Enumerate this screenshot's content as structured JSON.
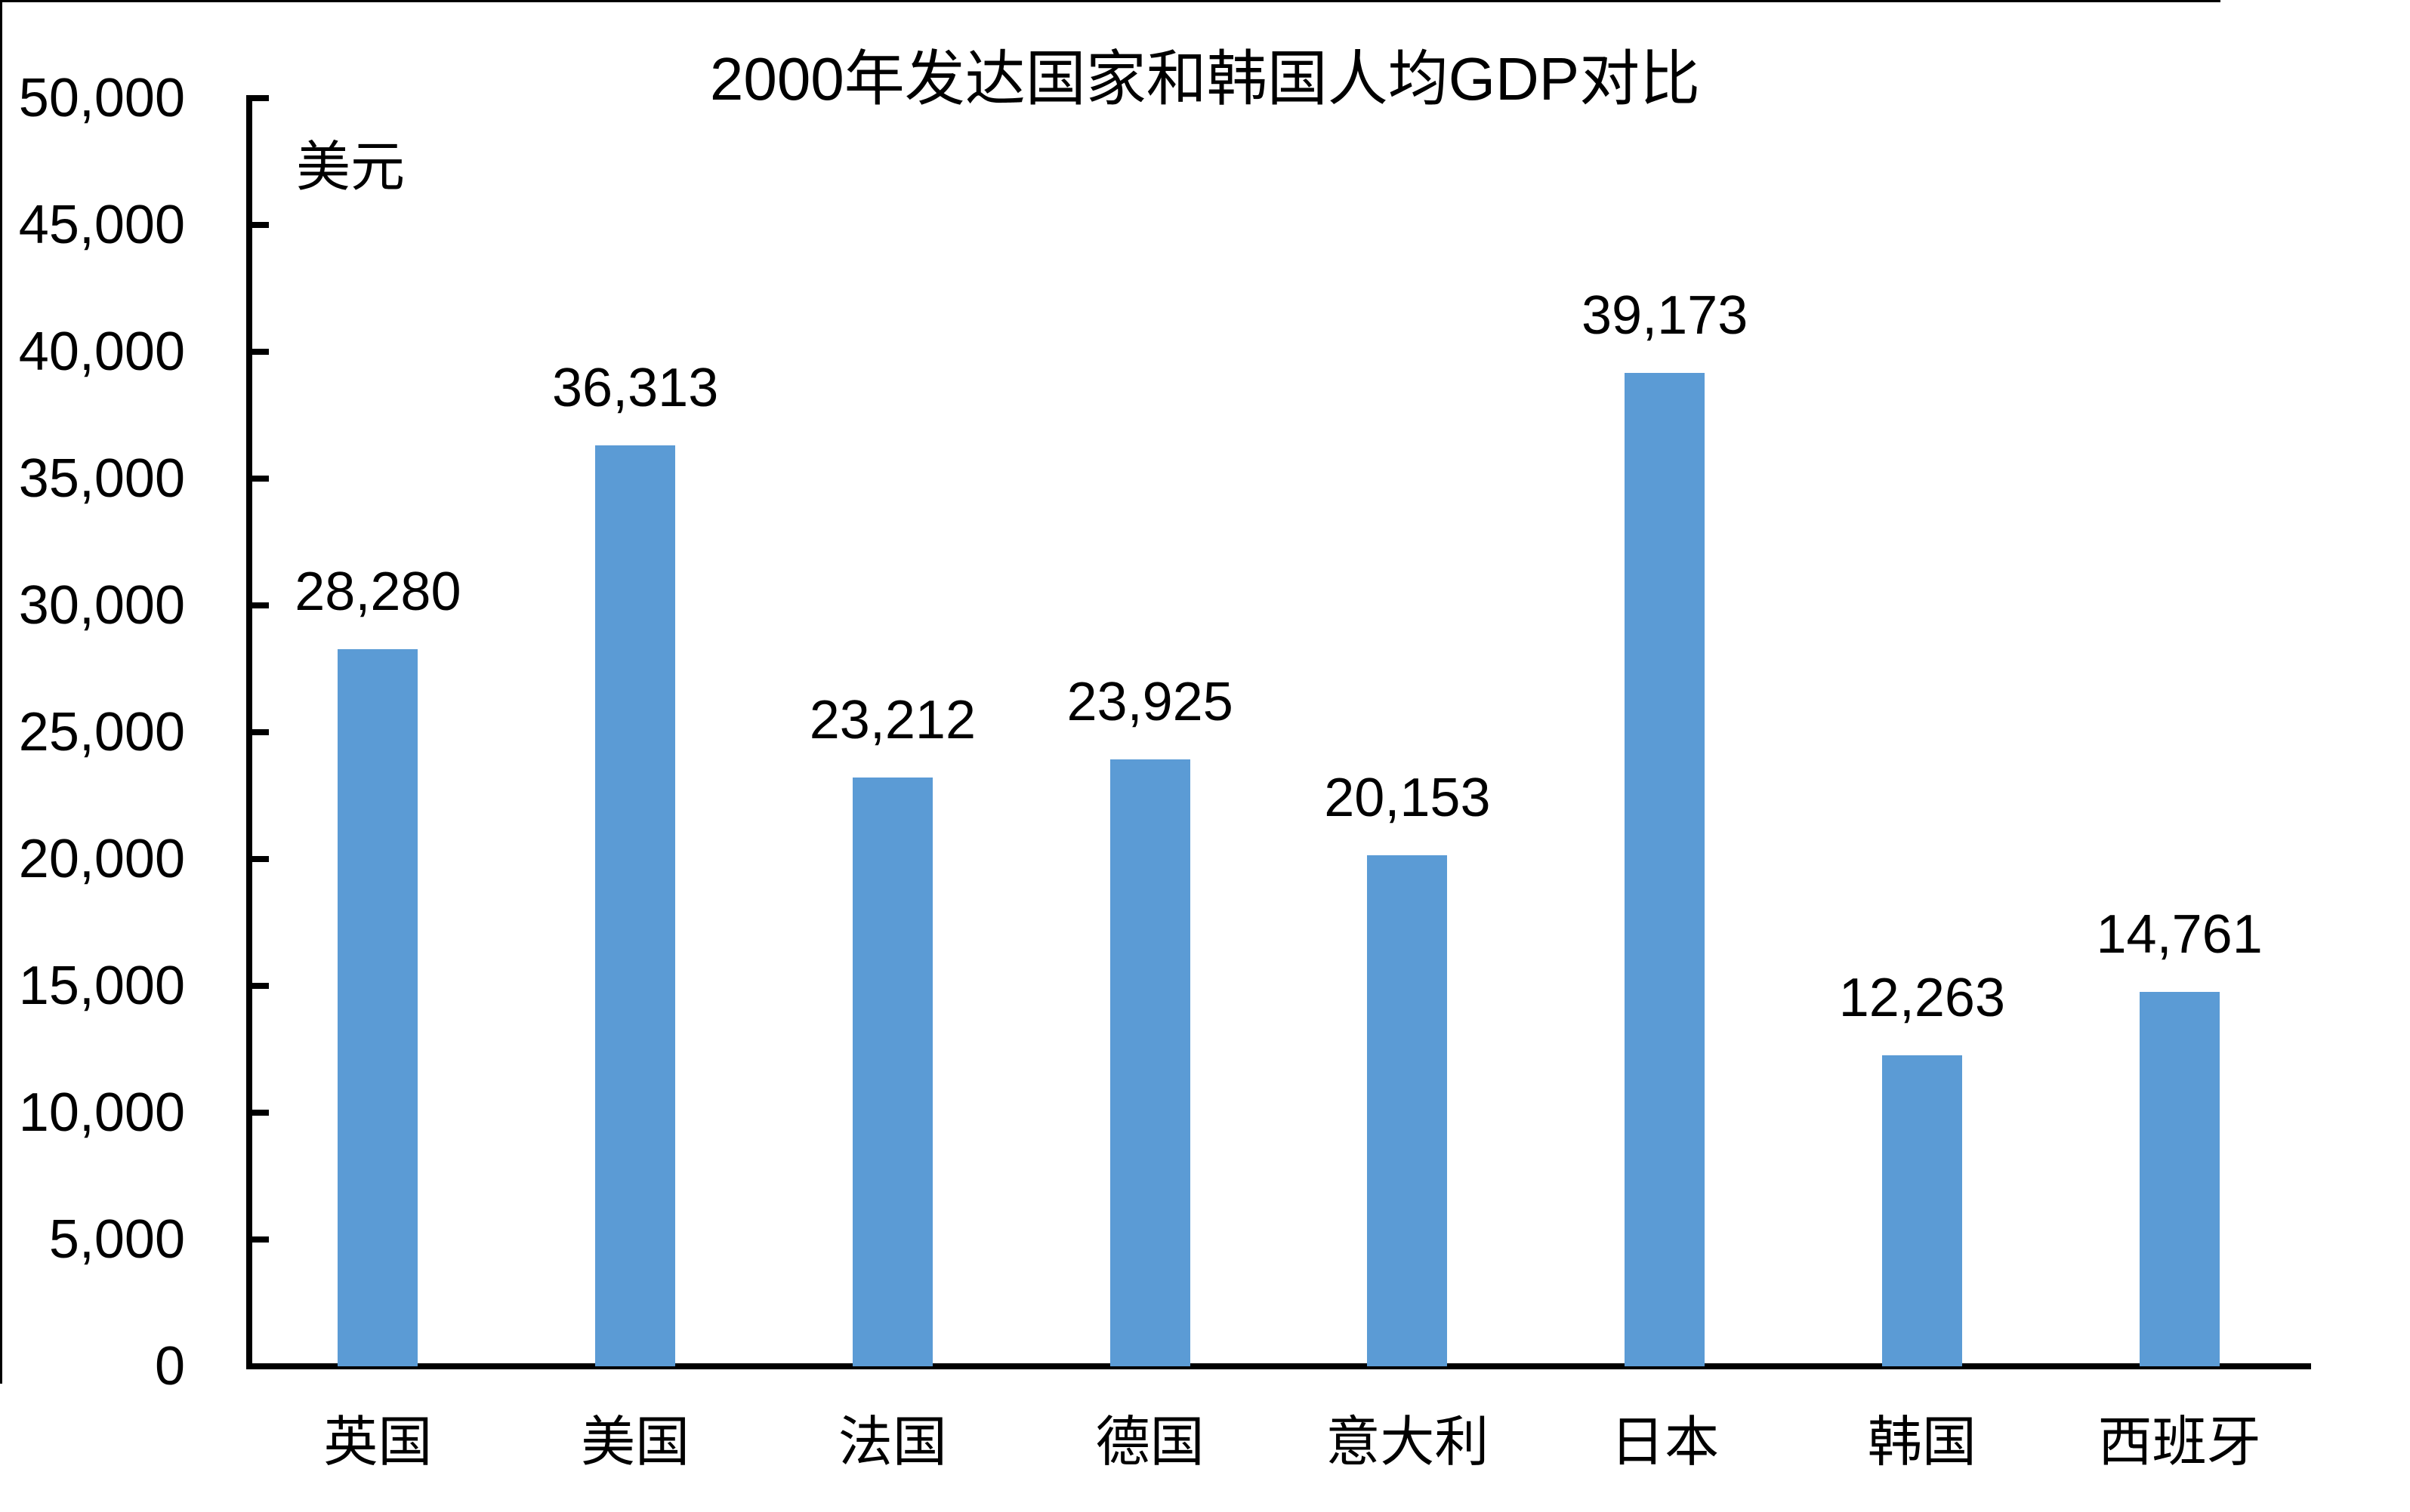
{
  "chart_data": {
    "type": "bar",
    "title": "2000年发达国家和韩国人均GDP对比",
    "unit_label": "美元",
    "categories": [
      "英国",
      "美国",
      "法国",
      "德国",
      "意大利",
      "日本",
      "韩国",
      "西班牙"
    ],
    "values": [
      28280,
      36313,
      23212,
      23925,
      20153,
      39173,
      12263,
      14761
    ],
    "data_labels": [
      "28,280",
      "36,313",
      "23,212",
      "23,925",
      "20,153",
      "39,173",
      "12,263",
      "14,761"
    ],
    "ylim": [
      0,
      50000
    ],
    "ytick_step": 5000,
    "ytick_labels": [
      "0",
      "5,000",
      "10,000",
      "15,000",
      "20,000",
      "25,000",
      "30,000",
      "35,000",
      "40,000",
      "45,000",
      "50,000"
    ],
    "ylabel": "",
    "xlabel": "",
    "grid": false,
    "legend": "none",
    "bar_color": "#5B9BD5",
    "axis_color": "#000000",
    "text_color": "#000000"
  }
}
